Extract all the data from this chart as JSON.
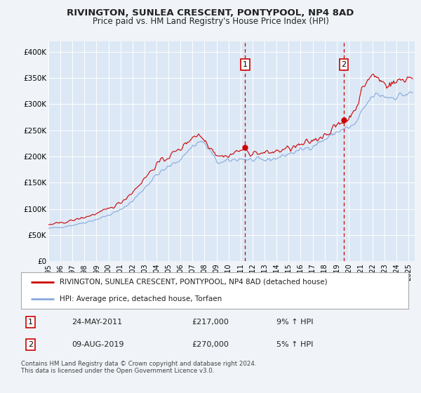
{
  "title": "RIVINGTON, SUNLEA CRESCENT, PONTYPOOL, NP4 8AD",
  "subtitle": "Price paid vs. HM Land Registry's House Price Index (HPI)",
  "background_color": "#f0f4f8",
  "plot_bg_color": "#dce8f5",
  "legend_line1": "RIVINGTON, SUNLEA CRESCENT, PONTYPOOL, NP4 8AD (detached house)",
  "legend_line2": "HPI: Average price, detached house, Torfaen",
  "annotation1_date": "24-MAY-2011",
  "annotation1_price": "£217,000",
  "annotation1_hpi": "9% ↑ HPI",
  "annotation2_date": "09-AUG-2019",
  "annotation2_price": "£270,000",
  "annotation2_hpi": "5% ↑ HPI",
  "footer": "Contains HM Land Registry data © Crown copyright and database right 2024.\nThis data is licensed under the Open Government Licence v3.0.",
  "ylim": [
    0,
    420000
  ],
  "yticks": [
    0,
    50000,
    100000,
    150000,
    200000,
    250000,
    300000,
    350000,
    400000
  ],
  "ytick_labels": [
    "£0",
    "£50K",
    "£100K",
    "£150K",
    "£200K",
    "£250K",
    "£300K",
    "£350K",
    "£400K"
  ],
  "red_line_color": "#cc0000",
  "blue_line_color": "#88aadd",
  "annotation_vline_color": "#cc0000",
  "annotation_box_color": "#cc0000",
  "sale1_x": 2011.38,
  "sale1_y": 217000,
  "sale2_x": 2019.6,
  "sale2_y": 270000,
  "xmin": 1995.0,
  "xmax": 2025.5
}
